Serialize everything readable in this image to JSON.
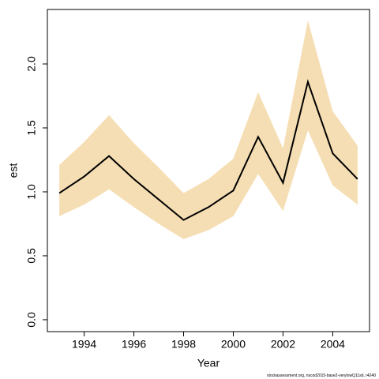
{
  "chart_data": {
    "type": "line",
    "x": [
      1993,
      1994,
      1995,
      1996,
      1997,
      1998,
      1999,
      2000,
      2001,
      2002,
      2003,
      2004,
      2005
    ],
    "values": [
      0.99,
      1.12,
      1.28,
      1.1,
      0.94,
      0.78,
      0.88,
      1.01,
      1.43,
      1.07,
      1.86,
      1.3,
      1.1
    ],
    "upper": [
      1.21,
      1.39,
      1.6,
      1.38,
      1.19,
      0.99,
      1.1,
      1.26,
      1.78,
      1.34,
      2.34,
      1.63,
      1.36
    ],
    "lower": [
      0.81,
      0.9,
      1.02,
      0.88,
      0.75,
      0.63,
      0.7,
      0.81,
      1.14,
      0.85,
      1.48,
      1.05,
      0.9
    ],
    "color": "#000000",
    "band_color": "#f5deb3",
    "xlabel": "Year",
    "ylabel": "est",
    "footnote": "stockassessment.org, nscod2015-base2-verylowQ11sd, r4240",
    "xlim": [
      1992.52,
      2005.48
    ],
    "xticks": [
      1994,
      1996,
      1998,
      2000,
      2002,
      2004
    ],
    "ylim": [
      -0.093,
      2.426
    ],
    "yticks": [
      {
        "value": 0,
        "label": "0.0"
      },
      0.5,
      {
        "value": 1,
        "label": "1.0"
      },
      1.5,
      {
        "value": 2,
        "label": "2.0"
      }
    ],
    "grid": false
  }
}
